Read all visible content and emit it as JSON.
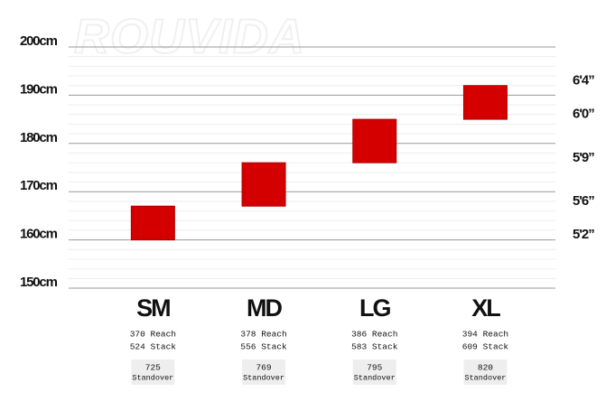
{
  "chart_data": {
    "type": "floating_bar",
    "watermark": "ROUVIDA",
    "categories": [
      "SM",
      "MD",
      "LG",
      "XL"
    ],
    "lows": [
      160,
      167,
      176,
      185
    ],
    "highs": [
      167,
      176,
      185,
      192
    ],
    "color": "#d40000",
    "ylim": [
      150,
      200
    ],
    "yticks": [
      {
        "value": 150,
        "label": "150cm"
      },
      {
        "value": 160,
        "label": "160cm"
      },
      {
        "value": 170,
        "label": "170cm"
      },
      {
        "value": 180,
        "label": "180cm"
      },
      {
        "value": 190,
        "label": "190cm"
      },
      {
        "value": 200,
        "label": "200cm"
      }
    ],
    "y2lim": [
      150,
      200
    ],
    "y2ticks": [
      {
        "value": 161,
        "label": "5'2”"
      },
      {
        "value": 168,
        "label": "5'6”"
      },
      {
        "value": 177,
        "label": "5'9”"
      },
      {
        "value": 186,
        "label": "6'0”"
      },
      {
        "value": 193,
        "label": "6'4”"
      }
    ],
    "grid": true,
    "reach": [
      "370 Reach",
      "378 Reach",
      "386 Reach",
      "394 Reach"
    ],
    "stack": [
      "524 Stack",
      "556 Stack",
      "583 Stack",
      "609 Stack"
    ],
    "standover": [
      725,
      769,
      795,
      820
    ],
    "standover_labels": [
      "Standover",
      "Standover",
      "Standover",
      "Standover"
    ]
  }
}
